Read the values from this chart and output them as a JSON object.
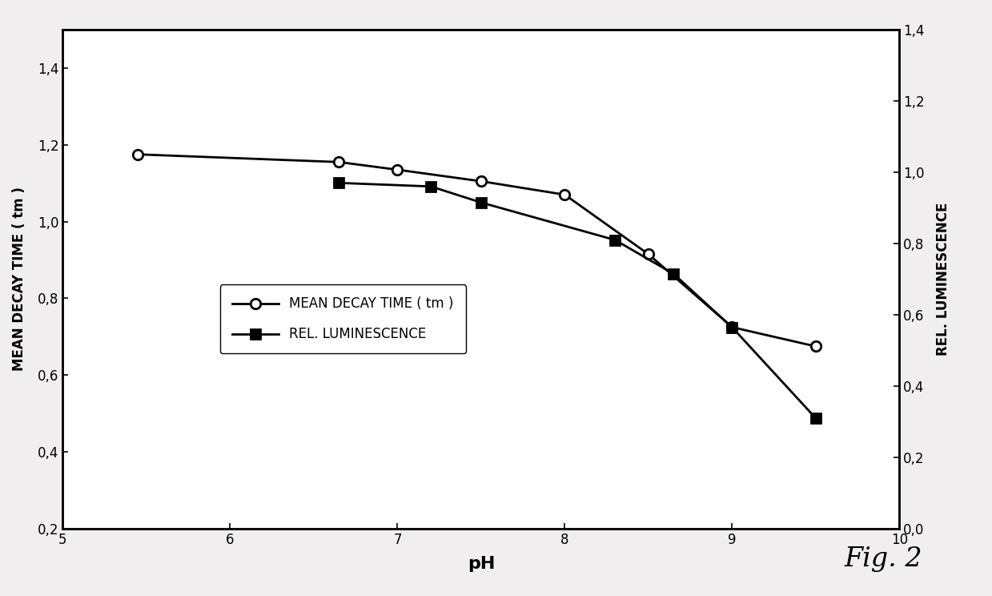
{
  "mean_decay_time_x": [
    5.45,
    6.65,
    7.0,
    7.5,
    8.0,
    8.5,
    9.0,
    9.5
  ],
  "mean_decay_time_y": [
    1.175,
    1.155,
    1.135,
    1.105,
    1.07,
    0.915,
    0.725,
    0.675
  ],
  "rel_luminescence_x": [
    6.65,
    7.2,
    7.5,
    8.3,
    8.65,
    9.0,
    9.5
  ],
  "rel_luminescence_y": [
    0.97,
    0.96,
    0.915,
    0.81,
    0.715,
    0.565,
    0.31
  ],
  "xlabel": "pH",
  "ylabel_left": "MEAN DECAY TIME ( tm )",
  "ylabel_right": "REL. LUMINESCENCE",
  "xlim": [
    5,
    10
  ],
  "ylim_left": [
    0.2,
    1.5
  ],
  "ylim_right": [
    0.0,
    1.4
  ],
  "yticks_left": [
    0.2,
    0.4,
    0.6,
    0.8,
    1.0,
    1.2,
    1.4
  ],
  "ytick_labels_left": [
    "0,2",
    "0,4",
    "0,6",
    "0,8",
    "1,0",
    "1,2",
    "1,4"
  ],
  "yticks_right": [
    0.0,
    0.2,
    0.4,
    0.6,
    0.8,
    1.0,
    1.2,
    1.4
  ],
  "ytick_labels_right": [
    "0,0",
    "0,2",
    "0,4",
    "0,6",
    "0,8",
    "1,0",
    "1,2",
    "1,4"
  ],
  "xticks": [
    5,
    6,
    7,
    8,
    9,
    10
  ],
  "legend_label_decay": "MEAN DECAY TIME ( tm )",
  "legend_label_lum": "REL. LUMINESCENCE",
  "fig2_label": "Fig. 2",
  "background_color": "#f0eeee",
  "line_color": "#000000"
}
